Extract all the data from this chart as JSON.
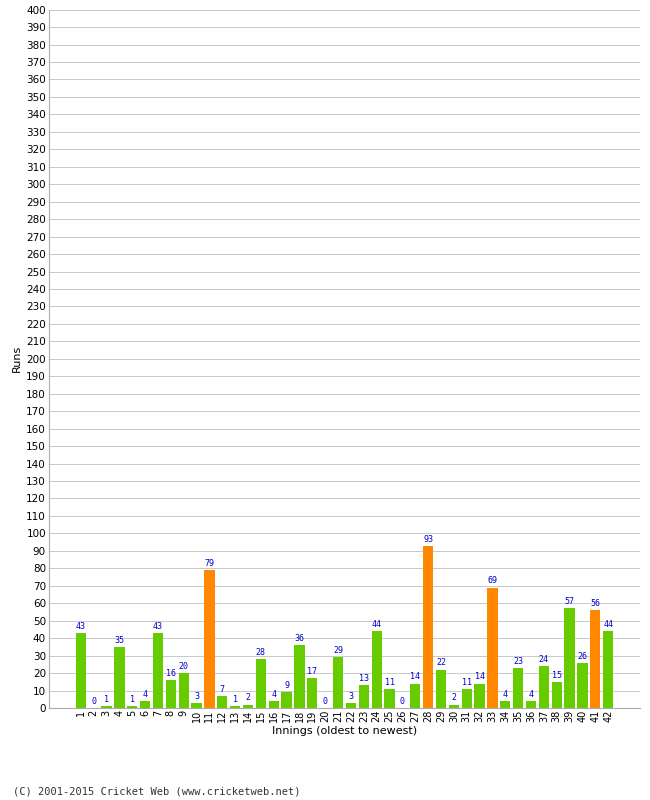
{
  "innings": [
    1,
    2,
    3,
    4,
    5,
    6,
    7,
    8,
    9,
    10,
    11,
    12,
    13,
    14,
    15,
    16,
    17,
    18,
    19,
    20,
    21,
    22,
    23,
    24,
    25,
    26,
    27,
    28,
    29,
    30,
    31,
    32,
    33,
    34,
    35,
    36,
    37,
    38,
    39,
    40,
    41,
    42
  ],
  "runs": [
    43,
    0,
    1,
    35,
    1,
    4,
    43,
    16,
    20,
    3,
    79,
    7,
    1,
    2,
    28,
    4,
    9,
    36,
    17,
    0,
    29,
    3,
    13,
    44,
    11,
    0,
    14,
    93,
    22,
    2,
    11,
    14,
    69,
    4,
    23,
    4,
    24,
    15,
    57,
    26,
    56,
    44
  ],
  "colors": [
    "#66cc00",
    "#66cc00",
    "#66cc00",
    "#66cc00",
    "#66cc00",
    "#66cc00",
    "#66cc00",
    "#66cc00",
    "#66cc00",
    "#66cc00",
    "#ff8800",
    "#66cc00",
    "#66cc00",
    "#66cc00",
    "#66cc00",
    "#66cc00",
    "#66cc00",
    "#66cc00",
    "#66cc00",
    "#66cc00",
    "#66cc00",
    "#66cc00",
    "#66cc00",
    "#66cc00",
    "#66cc00",
    "#66cc00",
    "#66cc00",
    "#ff8800",
    "#66cc00",
    "#66cc00",
    "#66cc00",
    "#66cc00",
    "#ff8800",
    "#66cc00",
    "#66cc00",
    "#66cc00",
    "#66cc00",
    "#66cc00",
    "#66cc00",
    "#66cc00",
    "#ff8800",
    "#66cc00"
  ],
  "xlabel": "Innings (oldest to newest)",
  "ylabel": "Runs",
  "ylim": [
    0,
    400
  ],
  "yticks": [
    0,
    10,
    20,
    30,
    40,
    50,
    60,
    70,
    80,
    90,
    100,
    110,
    120,
    130,
    140,
    150,
    160,
    170,
    180,
    190,
    200,
    210,
    220,
    230,
    240,
    250,
    260,
    270,
    280,
    290,
    300,
    310,
    320,
    330,
    340,
    350,
    360,
    370,
    380,
    390,
    400
  ],
  "label_color": "#0000cc",
  "bar_width": 0.8,
  "background_color": "#ffffff",
  "grid_color": "#c8c8c8",
  "footer": "(C) 2001-2015 Cricket Web (www.cricketweb.net)"
}
